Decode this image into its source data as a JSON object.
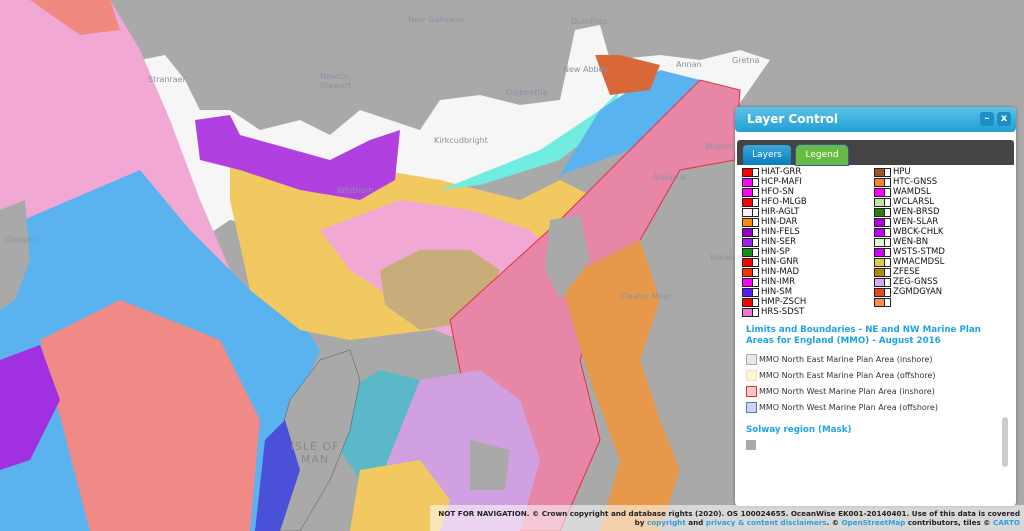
{
  "map": {
    "places": [
      "Dumfries",
      "New Galloway",
      "Newton Stewart",
      "Stranraer",
      "New Abbey",
      "Dalbeattie",
      "Kirkcudbright",
      "Annan",
      "Gretna",
      "Whithorn",
      "Wigton",
      "Aspatria",
      "Cleator Moor",
      "Keswick",
      "ISLE OF MAN",
      "Douglas"
    ]
  },
  "layer_control": {
    "title": "Layer Control",
    "minimize": "–",
    "close": "x",
    "tabs": [
      {
        "label": "Layers"
      },
      {
        "label": "Legend",
        "active": true
      }
    ],
    "legend_items": [
      {
        "code": "HIAT-GRR",
        "color": "#ff0000"
      },
      {
        "code": "HCP-MAFI",
        "color": "#ff00ff"
      },
      {
        "code": "HFO-SN",
        "color": "#ff00ff"
      },
      {
        "code": "HFO-MLGB",
        "color": "#ff0000"
      },
      {
        "code": "HIR-AGLT",
        "color": "#ffeef6"
      },
      {
        "code": "HIN-DAR",
        "color": "#ff8c00"
      },
      {
        "code": "HIN-FELS",
        "color": "#9400d3"
      },
      {
        "code": "HIN-SER",
        "color": "#a020f0"
      },
      {
        "code": "HIN-SP",
        "color": "#1a8a1a"
      },
      {
        "code": "HIN-GNR",
        "color": "#ff0000"
      },
      {
        "code": "HIN-MAD",
        "color": "#ff3300"
      },
      {
        "code": "HIN-IMR",
        "color": "#ff00ff"
      },
      {
        "code": "HIN-SM",
        "color": "#5a1aff"
      },
      {
        "code": "HMP-ZSCH",
        "color": "#ff0000"
      },
      {
        "code": "HRS-SDST",
        "color": "#ee77cc"
      },
      {
        "code": "HPU",
        "color": "#a0522d"
      },
      {
        "code": "HTC-GNSS",
        "color": "#ff7f30"
      },
      {
        "code": "WAMDSL",
        "color": "#ff00ff"
      },
      {
        "code": "WCLARSL",
        "color": "#c8e0a8"
      },
      {
        "code": "WEN-BRSD",
        "color": "#2e7d10"
      },
      {
        "code": "WEN-SLAR",
        "color": "#b000e0"
      },
      {
        "code": "WBCK-CHLK",
        "color": "#c000ff"
      },
      {
        "code": "WEN-BN",
        "color": "#e0f8d8"
      },
      {
        "code": "WSTS-STMD",
        "color": "#d000ff"
      },
      {
        "code": "WMACMDSL",
        "color": "#e6c84a"
      },
      {
        "code": "ZFESE",
        "color": "#b8860b"
      },
      {
        "code": "ZEG-GNSS",
        "color": "#d8a8f0"
      },
      {
        "code": "ZGMDGYAN",
        "color": "#e04a1a"
      },
      {
        "code": "",
        "color": "#ff8c40"
      }
    ],
    "section_mmo": "Limits and Boundaries - NE and NW Marine Plan Areas for England (MMO) - August 2016",
    "mmo_items": [
      {
        "label": "MMO North East Marine Plan Area (inshore)",
        "fill": "#e8e8e8",
        "border": "#aaaaaa"
      },
      {
        "label": "MMO North East Marine Plan Area (offshore)",
        "fill": "#fff4d8",
        "border": "#f0e0b0"
      },
      {
        "label": "MMO North West Marine Plan Area (inshore)",
        "fill": "#ffc8c8",
        "border": "#e03030"
      },
      {
        "label": "MMO North West Marine Plan Area (offshore)",
        "fill": "#c8d8f0",
        "border": "#5577bb"
      }
    ],
    "section_mask": "Solway region (Mask)",
    "mask_color": "#a9a9a9"
  },
  "attribution": {
    "line1": "NOT FOR NAVIGATION. © Crown copyright and database rights (2020). OS 100024655. OceanWise EK001-20140401. Use of this data is covered",
    "by": "by",
    "copyright": "copyright",
    "and": "and",
    "disclaimers": "privacy & content disclaimers",
    "osm_pre": ". ©",
    "osm": "OpenStreetMap",
    "tiles": "contributors, tiles ©",
    "carto": "CARTO"
  }
}
